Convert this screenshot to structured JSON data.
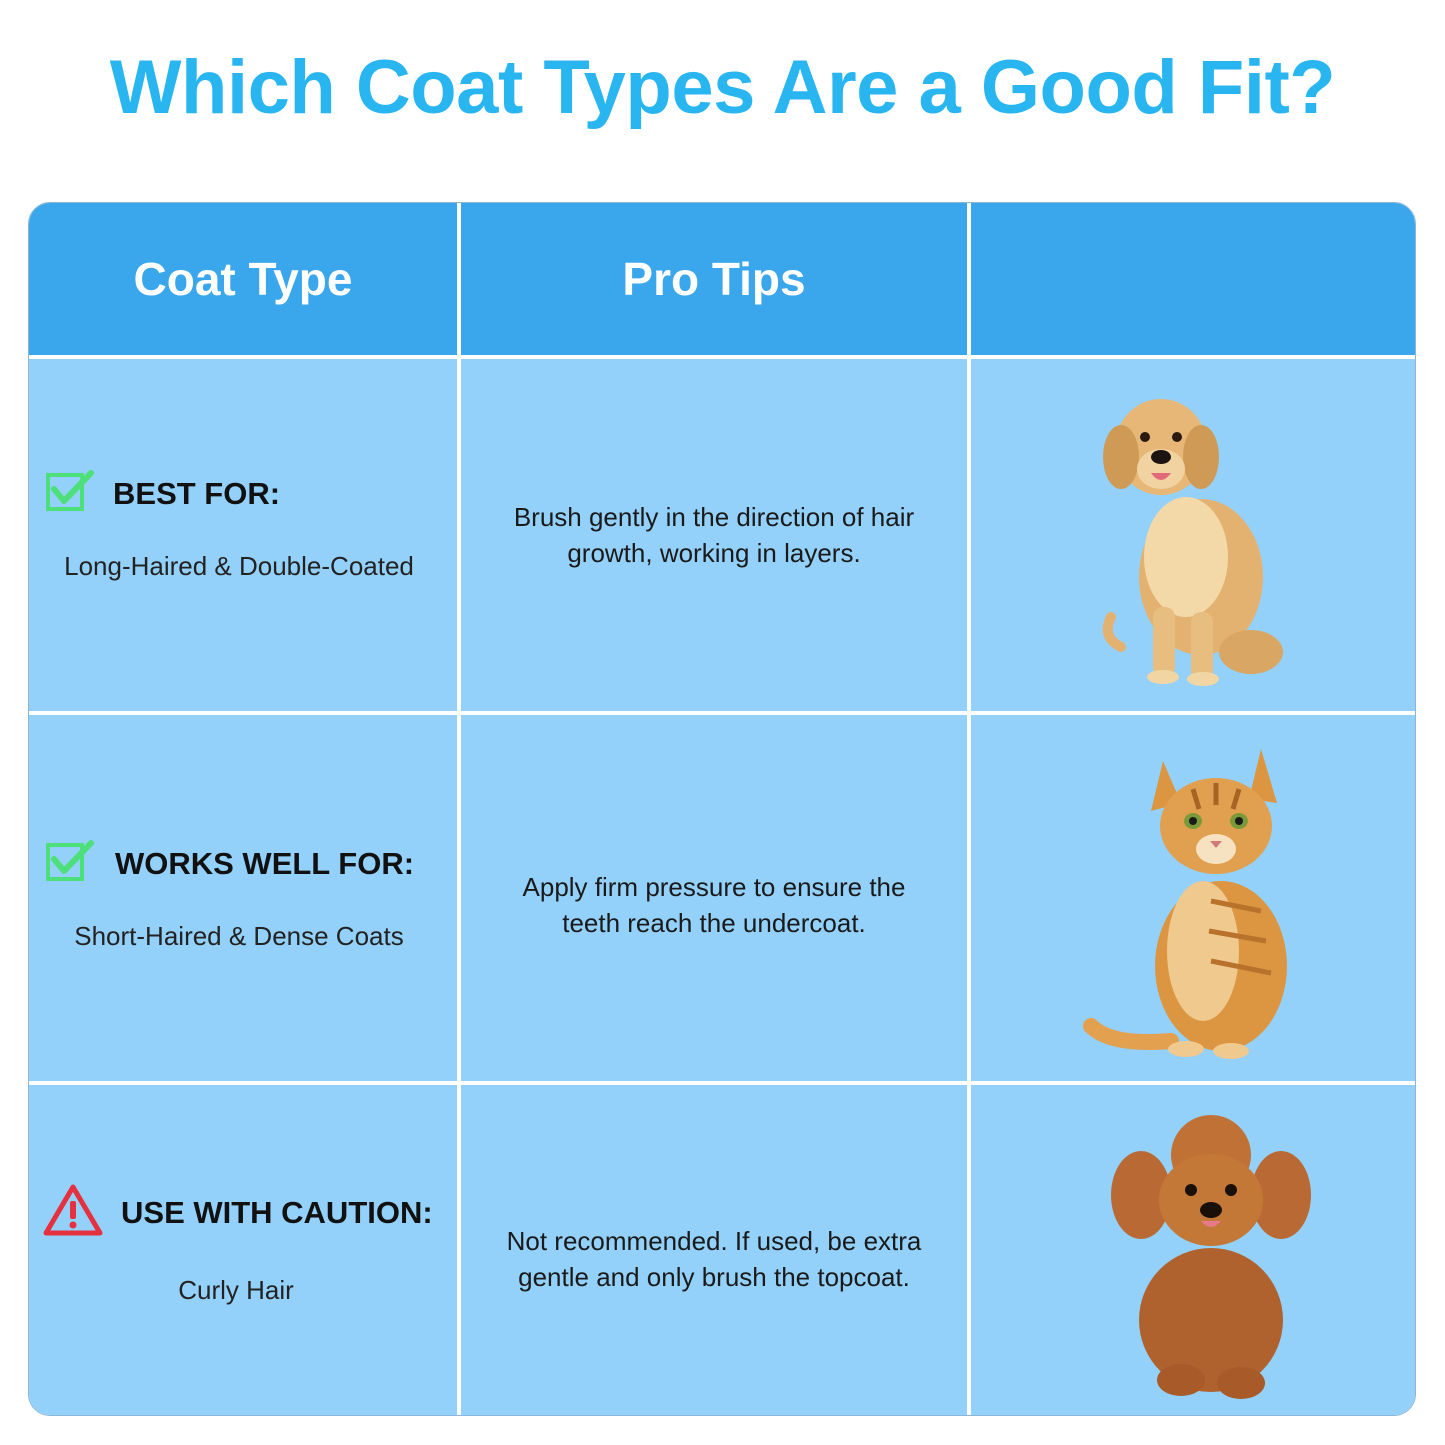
{
  "title": "Which Coat Types Are a Good Fit?",
  "table": {
    "headers": [
      "Coat Type",
      "Pro Tips",
      ""
    ],
    "rows": [
      {
        "status_icon": "check-box-icon",
        "label": "BEST FOR:",
        "coat": "Long-Haired & Double-Coated",
        "tip": "Brush gently in the direction of hair growth, working in layers.",
        "animal_icon": "golden-retriever-icon"
      },
      {
        "status_icon": "check-box-icon",
        "label": "WORKS WELL FOR:",
        "coat": "Short-Haired & Dense Coats",
        "tip": "Apply firm pressure to ensure the teeth reach the undercoat.",
        "animal_icon": "tabby-cat-icon"
      },
      {
        "status_icon": "warning-triangle-icon",
        "label": "USE WITH CAUTION:",
        "coat": "Curly Hair",
        "tip": "Not recommended. If used, be extra gentle and only brush the topcoat.",
        "animal_icon": "poodle-icon"
      }
    ]
  },
  "colors": {
    "title": "#29b6f0",
    "header_bg": "#3aa6ec",
    "cell_bg": "#94d1fa",
    "check": "#4de07a",
    "warning": "#e53040"
  }
}
